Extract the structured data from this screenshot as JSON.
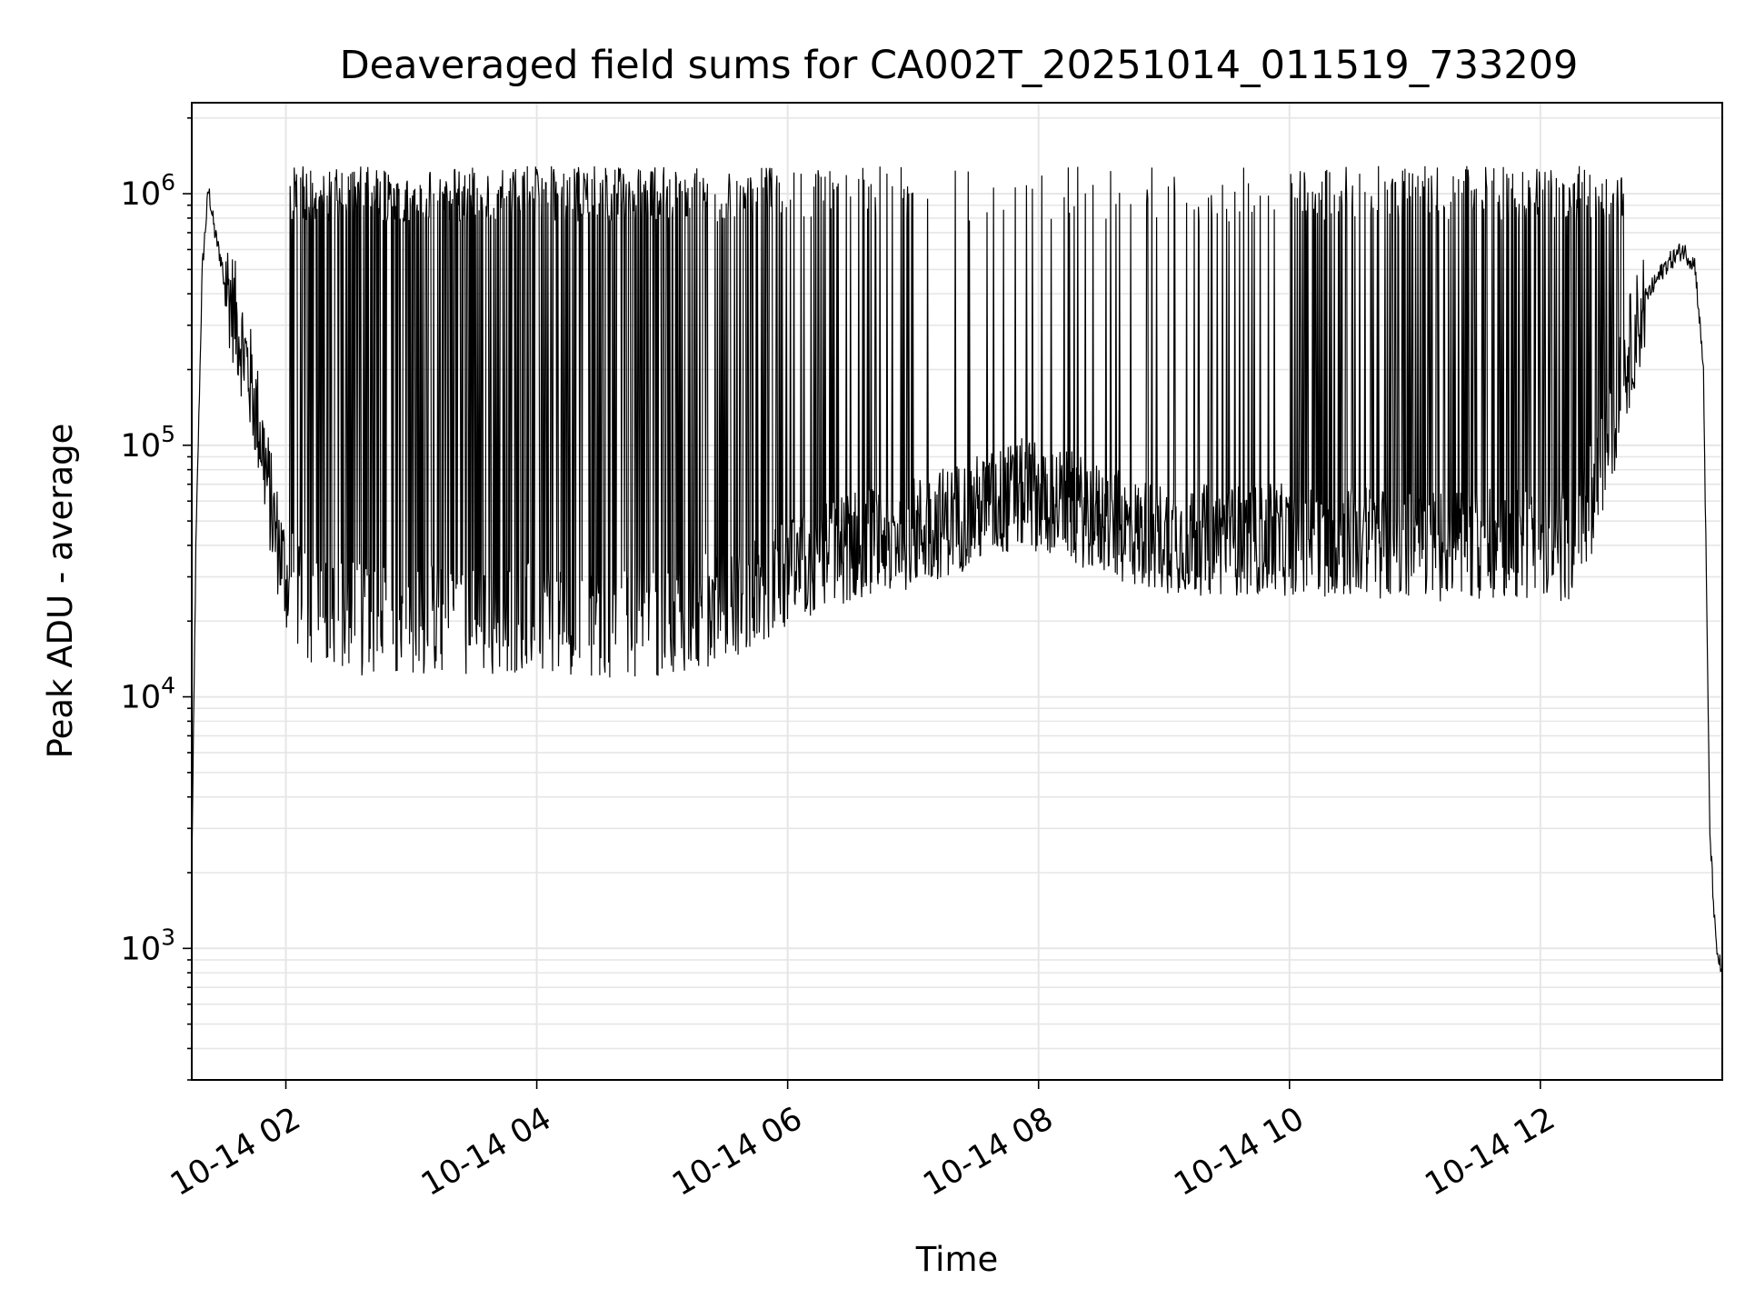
{
  "chart_data": {
    "type": "line",
    "title": "Deaveraged field sums for CA002T_20251014_011519_733209",
    "xlabel": "Time",
    "ylabel": "Peak ADU - average",
    "y_scale": "log",
    "ylim": [
      300,
      2300000
    ],
    "xlim": [
      "2025-10-14 01:15",
      "2025-10-14 13:27"
    ],
    "grid": true,
    "line_color": "#000000",
    "x_tick_labels": [
      "10-14 02",
      "10-14 04",
      "10-14 06",
      "10-14 08",
      "10-14 10",
      "10-14 12"
    ],
    "x_tick_times": [
      "2025-10-14 02:00",
      "2025-10-14 04:00",
      "2025-10-14 06:00",
      "2025-10-14 08:00",
      "2025-10-14 10:00",
      "2025-10-14 12:00"
    ],
    "y_tick_values": [
      1000,
      10000,
      100000,
      1000000
    ],
    "y_tick_labels": [
      {
        "base": "10",
        "exp": "3"
      },
      {
        "base": "10",
        "exp": "4"
      },
      {
        "base": "10",
        "exp": "5"
      },
      {
        "base": "10",
        "exp": "6"
      }
    ],
    "series": [
      {
        "x": [
          "2025-10-14 01:15",
          "2025-10-14 01:17",
          "2025-10-14 01:20",
          "2025-10-14 01:23",
          "2025-10-14 01:26",
          "2025-10-14 01:30",
          "2025-10-14 01:36",
          "2025-10-14 01:42",
          "2025-10-14 01:48",
          "2025-10-14 01:54",
          "2025-10-14 02:00",
          "2025-10-14 02:05",
          "2025-10-14 02:10",
          "2025-10-14 02:20",
          "2025-10-14 02:40",
          "2025-10-14 03:00",
          "2025-10-14 03:30",
          "2025-10-14 04:00",
          "2025-10-14 04:30",
          "2025-10-14 05:00",
          "2025-10-14 05:30",
          "2025-10-14 06:00",
          "2025-10-14 06:30",
          "2025-10-14 07:00",
          "2025-10-14 07:30",
          "2025-10-14 07:55",
          "2025-10-14 08:20",
          "2025-10-14 08:45",
          "2025-10-14 09:15",
          "2025-10-14 09:45",
          "2025-10-14 10:15",
          "2025-10-14 10:45",
          "2025-10-14 11:15",
          "2025-10-14 11:45",
          "2025-10-14 12:15",
          "2025-10-14 12:30",
          "2025-10-14 12:40",
          "2025-10-14 12:50",
          "2025-10-14 13:00",
          "2025-10-14 13:08",
          "2025-10-14 13:14",
          "2025-10-14 13:18",
          "2025-10-14 13:21",
          "2025-10-14 13:24",
          "2025-10-14 13:27"
        ],
        "baseline": [
          2000,
          40000,
          500000,
          1050000,
          700000,
          500000,
          320000,
          200000,
          110000,
          50000,
          30000,
          25000,
          22000,
          21000,
          20000,
          20000,
          20000,
          21000,
          20000,
          20000,
          23000,
          30000,
          40000,
          45000,
          55000,
          65000,
          55000,
          45000,
          42000,
          42000,
          42000,
          41000,
          40000,
          40000,
          40000,
          80000,
          200000,
          380000,
          520000,
          600000,
          520000,
          200000,
          3000,
          1000,
          800
        ],
        "spike_level": 1000000
      }
    ]
  }
}
